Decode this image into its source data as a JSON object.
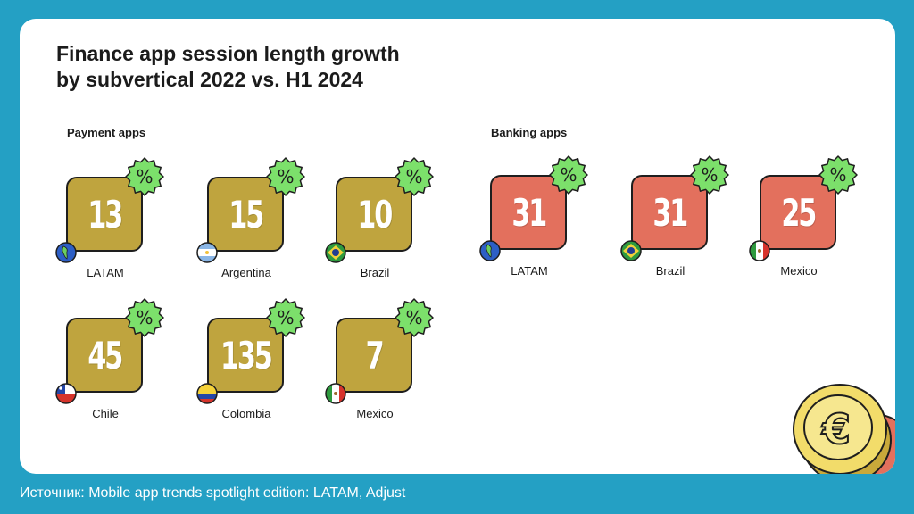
{
  "title": "Finance app session length growth\nby subvertical 2022 vs. H1 2024",
  "source": "Источник: Mobile app trends spotlight edition: LATAM, Adjust",
  "colors": {
    "payment": "#bfa43e",
    "banking": "#e3705d",
    "badge": "#7ce06b",
    "background": "#24a0c4"
  },
  "chart_data": [
    {
      "type": "table",
      "title": "Payment apps",
      "unit": "%",
      "categories": [
        "LATAM",
        "Argentina",
        "Brazil",
        "Chile",
        "Colombia",
        "Mexico"
      ],
      "values": [
        13,
        15,
        10,
        45,
        135,
        7
      ]
    },
    {
      "type": "table",
      "title": "Banking apps",
      "unit": "%",
      "categories": [
        "LATAM",
        "Brazil",
        "Mexico"
      ],
      "values": [
        31,
        31,
        25
      ]
    }
  ]
}
